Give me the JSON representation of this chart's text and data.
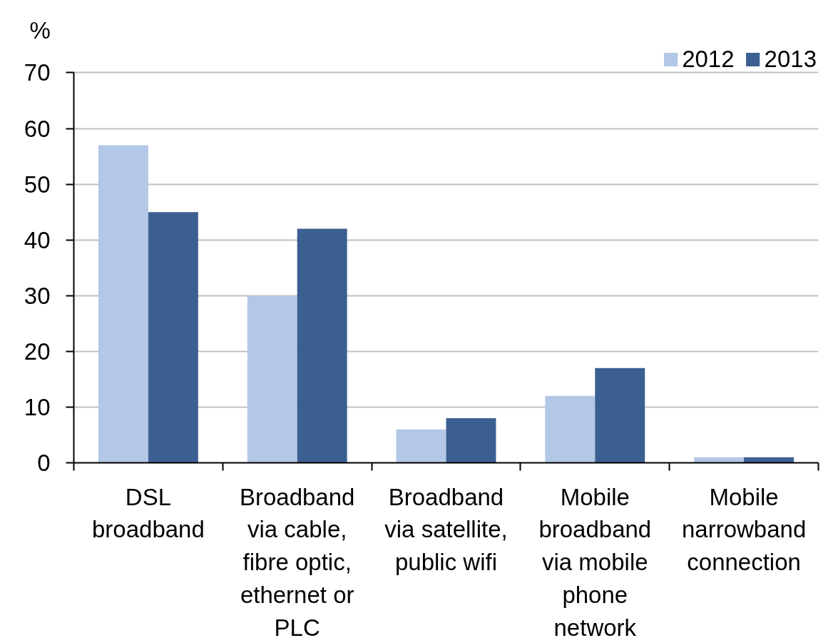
{
  "chart_data": {
    "type": "bar",
    "ylabel": "%",
    "categories": [
      "DSL broadband",
      "Broadband via cable, fibre optic, ethernet or PLC",
      "Broadband via satellite, public wifi",
      "Mobile broadband via mobile phone network",
      "Mobile narrowband connection"
    ],
    "series": [
      {
        "name": "2012",
        "color": "#b3c7e6",
        "values": [
          57,
          30,
          6,
          12,
          1
        ]
      },
      {
        "name": "2013",
        "color": "#3c5f91",
        "values": [
          45,
          42,
          8,
          17,
          1
        ]
      }
    ],
    "ylim": [
      0,
      70
    ],
    "yticks": [
      0,
      10,
      20,
      30,
      40,
      50,
      60,
      70
    ],
    "grid": "y",
    "legend": "top right"
  }
}
